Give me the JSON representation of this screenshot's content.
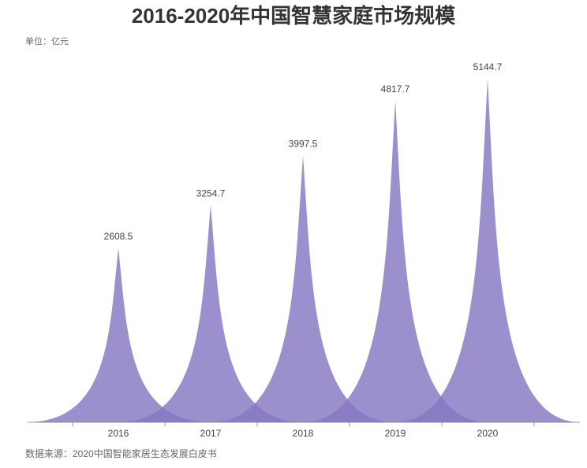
{
  "chart_data": {
    "type": "spike",
    "title": "2016-2020年中国智慧家庭市场规模",
    "unit": "单位：亿元",
    "source": "数据来源：2020中国智能家居生态发展白皮书",
    "categories": [
      "2016",
      "2017",
      "2018",
      "2019",
      "2020"
    ],
    "values": [
      2608.5,
      3254.7,
      3997.5,
      4817.7,
      5144.7
    ],
    "color": "#8577c2"
  }
}
